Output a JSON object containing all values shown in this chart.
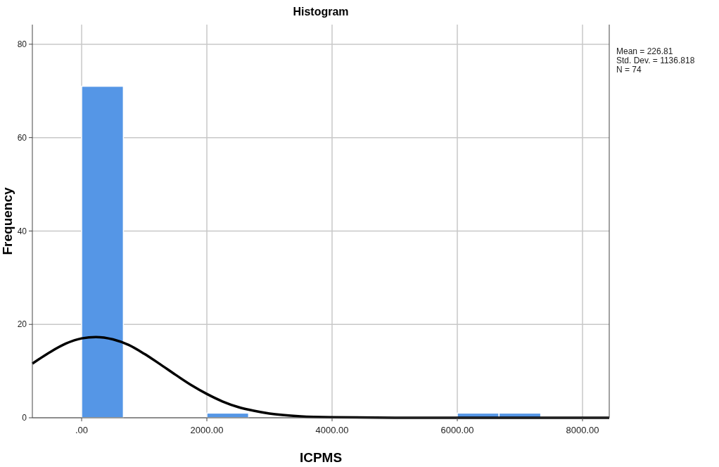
{
  "chart_data": {
    "type": "histogram",
    "title": "Histogram",
    "xlabel": "ICPMS",
    "ylabel": "Frequency",
    "bins": [
      0,
      666.67,
      1333.33,
      2000,
      2666.67,
      3333.33,
      4000,
      4666.67,
      5333.33,
      6000,
      6666.67,
      7333.33
    ],
    "values": [
      71,
      0,
      0,
      1,
      0,
      0,
      0,
      0,
      0,
      1,
      1
    ],
    "color": "#5596e6",
    "series": [
      {
        "type": "line",
        "color": "#000000",
        "x": [
          -787,
          -500,
          -250,
          0,
          227,
          500,
          750,
          1000,
          1250,
          1500,
          1750,
          2000,
          2250,
          2500,
          2750,
          3000,
          3500,
          4000,
          5000,
          8427
        ],
        "values": [
          11.6,
          14.1,
          15.9,
          17.0,
          17.3,
          16.8,
          15.6,
          13.7,
          11.5,
          9.2,
          7.0,
          5.1,
          3.5,
          2.3,
          1.5,
          0.9,
          0.3,
          0.1,
          0,
          0
        ]
      }
    ],
    "xlim": [
      -787,
      8427
    ],
    "xticks": [
      {
        "value": 0,
        "label": ".00"
      },
      {
        "value": 2000,
        "label": "2000.00"
      },
      {
        "value": 4000,
        "label": "4000.00"
      },
      {
        "value": 6000,
        "label": "6000.00"
      },
      {
        "value": 8000,
        "label": "8000.00"
      }
    ],
    "ylim": [
      0,
      84.2
    ],
    "yticks": [
      0,
      20,
      40,
      60,
      80
    ],
    "grid": true,
    "annotations": [
      "Mean = 226.81",
      "Std. Dev. = 1136.818",
      "N = 74"
    ]
  }
}
